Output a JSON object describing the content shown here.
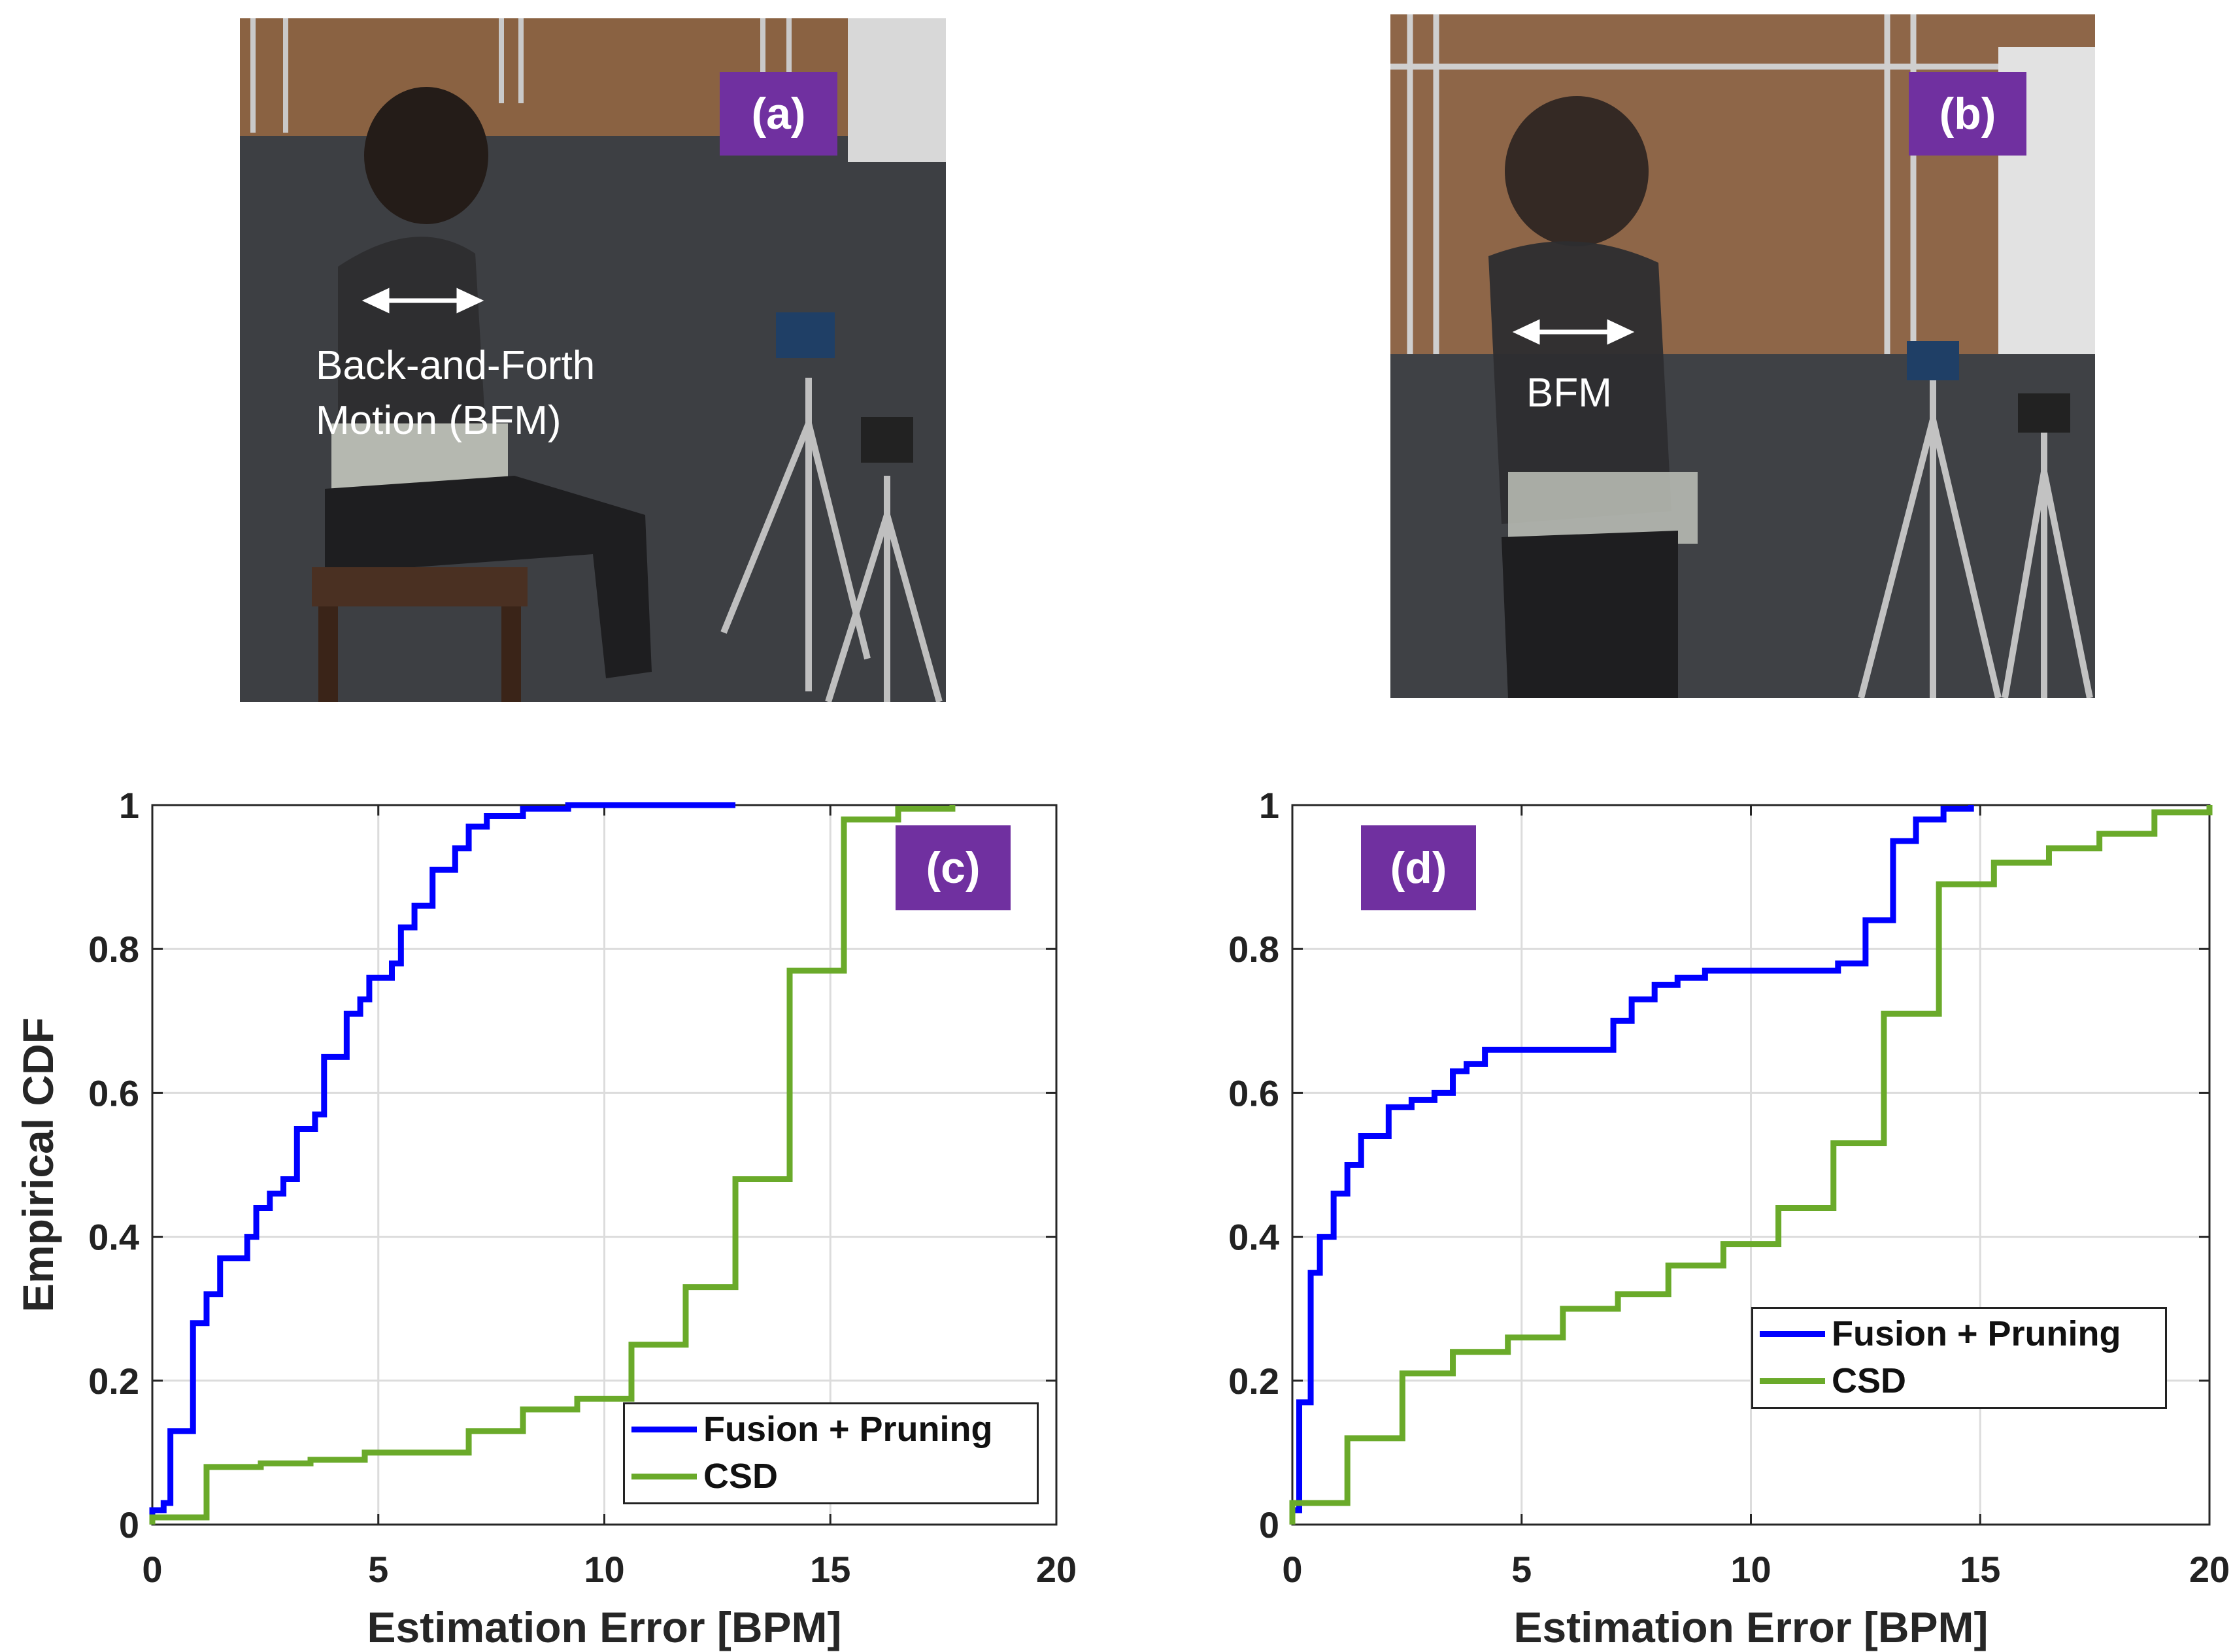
{
  "panels": {
    "a": {
      "badge": "(a)",
      "annotation_line1": "Back-and-Forth",
      "annotation_line2": "Motion (BFM)"
    },
    "b": {
      "badge": "(b)",
      "annotation": "BFM"
    },
    "c": {
      "badge": "(c)"
    },
    "d": {
      "badge": "(d)"
    }
  },
  "colors": {
    "fusion": "#0000ff",
    "csd": "#6aaa2a",
    "badge": "#7030a0"
  },
  "chart_data": [
    {
      "id": "c",
      "type": "line",
      "step": true,
      "xlabel": "Estimation Error [BPM]",
      "ylabel": "Empirical CDF",
      "xlim": [
        0,
        20
      ],
      "ylim": [
        0,
        1
      ],
      "xticks": [
        "0",
        "5",
        "10",
        "15",
        "20"
      ],
      "yticks": [
        "0",
        "0.2",
        "0.4",
        "0.6",
        "0.8",
        "1"
      ],
      "grid": true,
      "legend": "bottom-right",
      "series": [
        {
          "name": "Fusion + Pruning",
          "x": [
            0,
            0.25,
            0.4,
            0.9,
            1.2,
            1.5,
            2.1,
            2.3,
            2.6,
            2.9,
            3.2,
            3.6,
            3.8,
            4.3,
            4.6,
            4.8,
            5.3,
            5.5,
            5.8,
            6.2,
            6.7,
            7.0,
            7.4,
            8.2,
            9.2,
            10.3,
            12.9
          ],
          "y": [
            0.02,
            0.03,
            0.13,
            0.28,
            0.32,
            0.37,
            0.4,
            0.44,
            0.46,
            0.48,
            0.55,
            0.57,
            0.65,
            0.71,
            0.73,
            0.76,
            0.78,
            0.83,
            0.86,
            0.91,
            0.94,
            0.97,
            0.985,
            0.995,
            1.0,
            1.0,
            1.0
          ]
        },
        {
          "name": "CSD",
          "x": [
            0,
            1.2,
            2.4,
            3.5,
            4.7,
            7.0,
            8.2,
            9.4,
            10.6,
            11.8,
            12.9,
            14.1,
            15.3,
            16.5,
            17.7
          ],
          "y": [
            0.01,
            0.08,
            0.085,
            0.09,
            0.1,
            0.13,
            0.16,
            0.175,
            0.25,
            0.33,
            0.48,
            0.77,
            0.98,
            0.995,
            1.0
          ]
        }
      ]
    },
    {
      "id": "d",
      "type": "line",
      "step": true,
      "xlabel": "Estimation Error [BPM]",
      "ylabel": "",
      "xlim": [
        0,
        20
      ],
      "ylim": [
        0,
        1
      ],
      "xticks": [
        "0",
        "5",
        "10",
        "15",
        "20"
      ],
      "yticks": [
        "0",
        "0.2",
        "0.4",
        "0.6",
        "0.8",
        "1"
      ],
      "grid": true,
      "legend": "bottom-right",
      "series": [
        {
          "name": "Fusion + Pruning",
          "x": [
            0,
            0.15,
            0.4,
            0.6,
            0.9,
            1.2,
            1.5,
            2.1,
            2.6,
            3.1,
            3.5,
            3.8,
            4.2,
            4.8,
            5.5,
            6.5,
            7.0,
            7.4,
            7.9,
            8.4,
            9.0,
            9.6,
            10.5,
            11.5,
            11.9,
            12.5,
            13.1,
            13.6,
            14.2,
            14.8
          ],
          "y": [
            0.02,
            0.17,
            0.35,
            0.4,
            0.46,
            0.5,
            0.54,
            0.58,
            0.59,
            0.6,
            0.63,
            0.64,
            0.66,
            0.66,
            0.66,
            0.66,
            0.7,
            0.73,
            0.75,
            0.76,
            0.77,
            0.77,
            0.77,
            0.77,
            0.78,
            0.84,
            0.95,
            0.98,
            0.995,
            1.0
          ]
        },
        {
          "name": "CSD",
          "x": [
            0,
            1.2,
            2.4,
            3.5,
            4.7,
            5.9,
            7.1,
            8.2,
            9.4,
            10.6,
            11.8,
            12.9,
            14.1,
            15.3,
            16.5,
            17.6,
            18.8,
            20.0
          ],
          "y": [
            0.03,
            0.12,
            0.21,
            0.24,
            0.26,
            0.3,
            0.32,
            0.36,
            0.39,
            0.44,
            0.53,
            0.71,
            0.89,
            0.92,
            0.94,
            0.96,
            0.99,
            1.0
          ]
        }
      ]
    }
  ]
}
